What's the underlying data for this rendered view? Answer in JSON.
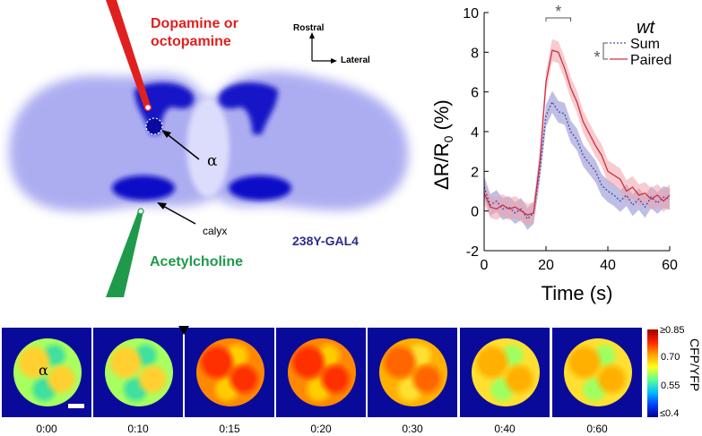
{
  "brain": {
    "top_label_line1": "Dopamine or",
    "top_label_line2": "octopamine",
    "bottom_label": "Acetylcholine",
    "alpha_label": "α",
    "calyx_label": "calyx",
    "line_label": "238Y-GAL4",
    "axis_rostral": "Rostral",
    "axis_lateral": "Lateral",
    "colors": {
      "dopamine": "#e02020",
      "acetylcholine": "#1f9a4a",
      "stain": "#3a3ad8",
      "line_label": "#2c2c8c"
    }
  },
  "chart_data": {
    "type": "line",
    "title": "wt",
    "xlabel": "Time (s)",
    "ylabel": "ΔR/R0 (%)",
    "ylabel_main": "ΔR/R",
    "ylabel_sub": "0",
    "ylabel_tail": " (%)",
    "xlim": [
      0,
      60
    ],
    "ylim": [
      -2,
      10
    ],
    "xticks": [
      "0",
      "20",
      "40",
      "60"
    ],
    "yticks": [
      "-2",
      "0",
      "2",
      "4",
      "6",
      "8",
      "10"
    ],
    "significance_marker": "*",
    "legend_placement": "top-right",
    "x": [
      0,
      2,
      4,
      6,
      8,
      10,
      12,
      14,
      16,
      18,
      20,
      22,
      24,
      26,
      28,
      30,
      32,
      34,
      36,
      38,
      40,
      42,
      44,
      46,
      48,
      50,
      52,
      54,
      56,
      58,
      60
    ],
    "series": [
      {
        "name": "Sum",
        "color": "#4a4aa8",
        "style": "dotted",
        "values": [
          1.2,
          0.3,
          0.5,
          0.1,
          0.2,
          -0.1,
          0.1,
          -0.4,
          -0.1,
          2.0,
          4.8,
          5.5,
          5.0,
          4.9,
          4.0,
          3.6,
          2.8,
          2.4,
          2.0,
          1.3,
          1.0,
          0.8,
          0.5,
          0.8,
          0.3,
          0.6,
          0.2,
          0.7,
          0.4,
          0.7,
          0.6
        ]
      },
      {
        "name": "Paired",
        "color": "#d03040",
        "style": "solid",
        "values": [
          0.9,
          0.2,
          0.1,
          0.3,
          0.1,
          0.2,
          0.0,
          -0.2,
          -0.1,
          2.5,
          6.5,
          8.1,
          8.0,
          7.2,
          6.2,
          5.5,
          4.5,
          3.9,
          3.3,
          2.8,
          2.0,
          1.8,
          1.6,
          1.0,
          1.2,
          0.8,
          0.9,
          0.6,
          0.8,
          0.5,
          0.8
        ]
      }
    ]
  },
  "heatmap_strip": {
    "alpha_label": "α",
    "times": [
      "0:00",
      "0:10",
      "0:15",
      "0:20",
      "0:30",
      "0:40",
      "0:60"
    ],
    "levels": [
      0.58,
      0.62,
      0.78,
      0.76,
      0.72,
      0.68,
      0.64
    ],
    "colorbar_ticks": [
      "≥0.85",
      "0.70",
      "0.55",
      "≤0.4"
    ],
    "colorbar_label": "CFP/YFP"
  }
}
